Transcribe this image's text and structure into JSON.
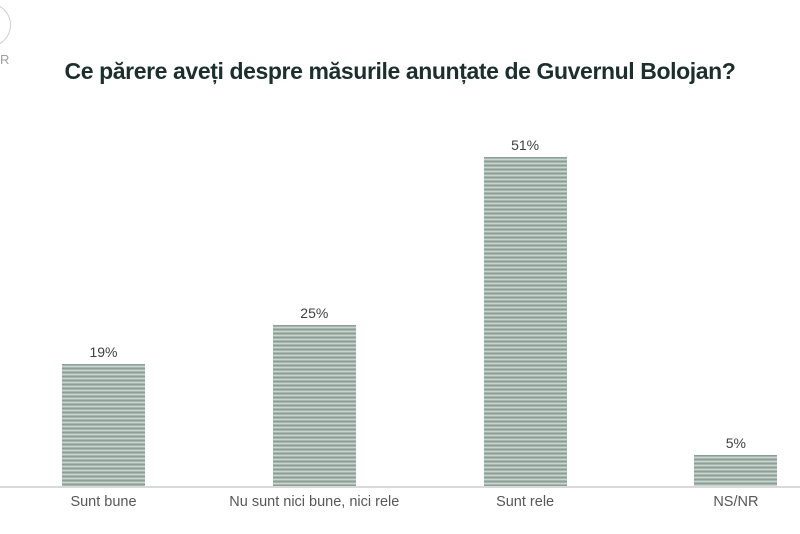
{
  "page": {
    "background": "#ffffff"
  },
  "logo": {
    "fragment_text": "R"
  },
  "header": {
    "title": "Ce părere aveți despre măsurile anunțate de Guvernul Bolojan?"
  },
  "colors": {
    "title": "#1d2f2b",
    "value_label": "#404040",
    "category_label": "#575757",
    "axis_line": "#d9d9d9",
    "bar_stripe_dark": "#8c9e97",
    "bar_stripe_mid": "#a6b7b0",
    "bar_stripe_light": "#c9d5d0"
  },
  "chart_data": {
    "type": "bar",
    "title": "Ce părere aveți despre măsurile anunțate de Guvernul Bolojan?",
    "categories": [
      "Sunt bune",
      "Nu sunt nici bune, nici rele",
      "Sunt rele",
      "NS/NR"
    ],
    "values": [
      19,
      25,
      51,
      5
    ],
    "value_labels": [
      "19%",
      "25%",
      "51%",
      "5%"
    ],
    "unit": "%",
    "ylim": [
      0,
      55
    ],
    "grid": false,
    "legend": false,
    "bar_style": "horizontal-stripes",
    "orientation": "vertical"
  }
}
